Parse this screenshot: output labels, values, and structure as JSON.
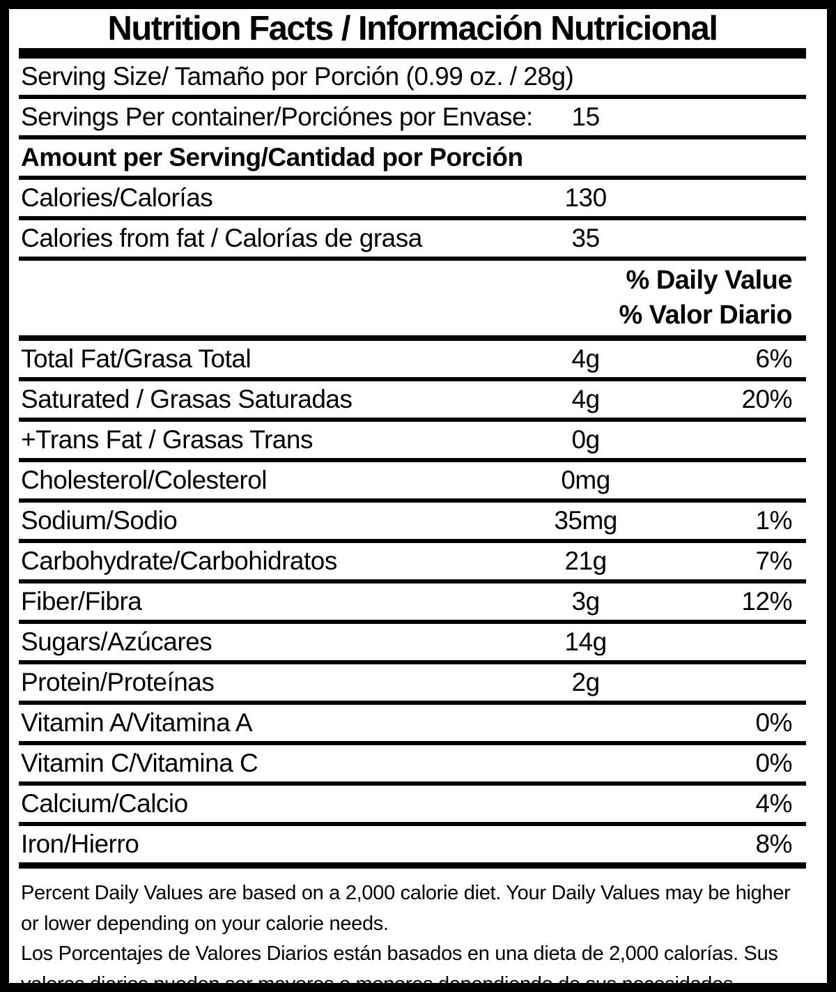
{
  "title": "Nutrition Facts / Información Nutricional",
  "serving_info": {
    "serving_size": "Serving Size/ Tamaño por Porción  (0.99 oz. / 28g)",
    "servings_per_container": "Servings Per container/Porciónes por Envase:",
    "servings_count": "15",
    "amount_per_serving": "Amount per Serving/Cantidad por Porción"
  },
  "energy_rows": [
    {
      "label": "Calories/Calorías",
      "amount": "130"
    },
    {
      "label": "Calories from fat / Calorías de grasa",
      "amount": "35"
    }
  ],
  "daily_value_header": {
    "line1": "% Daily Value",
    "line2": "% Valor Diario"
  },
  "nutrient_rows": [
    {
      "label": "Total Fat/Grasa Total",
      "amount": "4g",
      "percent": "6%"
    },
    {
      "label": "Saturated / Grasas Saturadas",
      "amount": "4g",
      "percent": "20%"
    },
    {
      "label": "+Trans Fat / Grasas Trans",
      "amount": "0g",
      "percent": ""
    },
    {
      "label": "Cholesterol/Colesterol",
      "amount": "0mg",
      "percent": ""
    },
    {
      "label": "Sodium/Sodio",
      "amount": "35mg",
      "percent": "1%"
    },
    {
      "label": "Carbohydrate/Carbohidratos",
      "amount": "21g",
      "percent": "7%"
    },
    {
      "label": "Fiber/Fibra",
      "amount": "3g",
      "percent": "12%"
    },
    {
      "label": "Sugars/Azúcares",
      "amount": "14g",
      "percent": ""
    },
    {
      "label": "Protein/Proteínas",
      "amount": "2g",
      "percent": ""
    },
    {
      "label": "Vitamin A/Vitamina A",
      "amount": "",
      "percent": "0%"
    },
    {
      "label": "Vitamin C/Vitamina C",
      "amount": "",
      "percent": "0%"
    },
    {
      "label": "Calcium/Calcio",
      "amount": "",
      "percent": "4%"
    },
    {
      "label": "Iron/Hierro",
      "amount": "",
      "percent": "8%"
    }
  ],
  "footnote": {
    "english": "Percent Daily Values are based on a 2,000 calorie diet. Your Daily Values may be higher or lower depending on your calorie needs.",
    "spanish": "Los Porcentajes de Valores Diarios están basados en una dieta de 2,000 calorías. Sus valores diarios pueden ser mayores o menores dependiendo de sus necesidades calóricas"
  },
  "colors": {
    "text": "#000000",
    "background": "#ffffff"
  }
}
